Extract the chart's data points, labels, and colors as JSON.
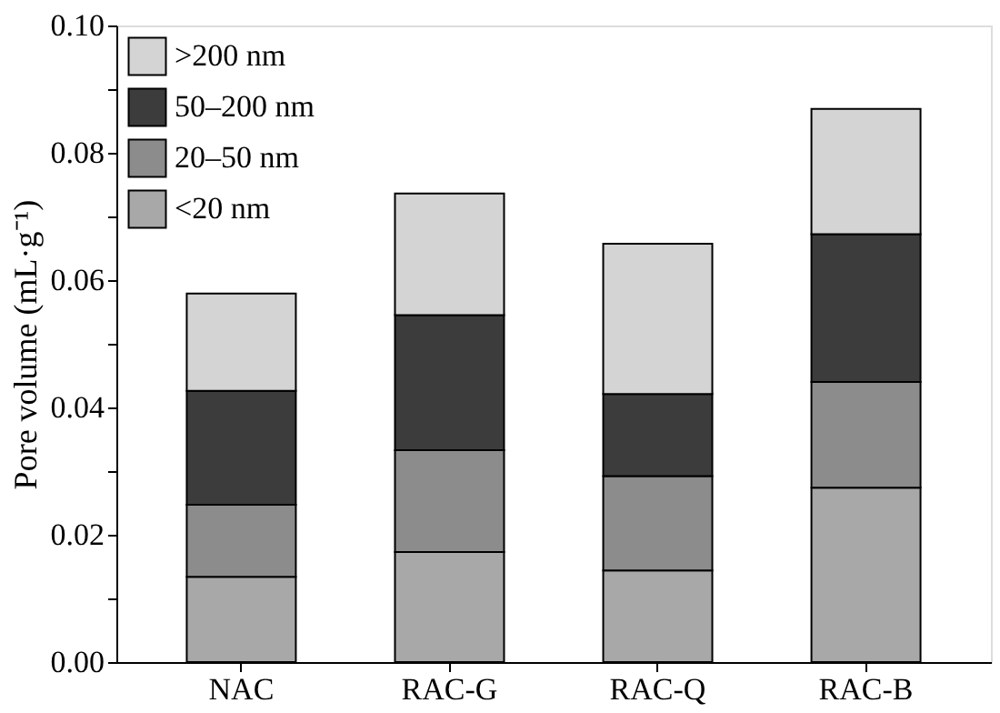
{
  "chart_data": {
    "type": "bar",
    "stacked": true,
    "ylabel": "Pore volume (mL·g⁻¹)",
    "categories": [
      "NAC",
      "RAC-G",
      "RAC-Q",
      "RAC-B"
    ],
    "series": [
      {
        "name": "<20 nm",
        "color": "#a8a8a8",
        "values": [
          0.0134,
          0.0173,
          0.0144,
          0.0274
        ]
      },
      {
        "name": "20–50 nm",
        "color": "#8c8c8c",
        "values": [
          0.0113,
          0.016,
          0.0148,
          0.0166
        ]
      },
      {
        "name": "50–200 nm",
        "color": "#3c3c3c",
        "values": [
          0.0179,
          0.0212,
          0.0129,
          0.0232
        ]
      },
      {
        "name": ">200 nm",
        "color": "#d4d4d4",
        "values": [
          0.0153,
          0.0191,
          0.0236,
          0.0197
        ]
      }
    ],
    "ylim": [
      0,
      0.1
    ],
    "yticks": [
      {
        "value": 0,
        "label": "0.00"
      },
      {
        "value": 0.01,
        "label": null
      },
      {
        "value": 0.02,
        "label": "0.02"
      },
      {
        "value": 0.03,
        "label": null
      },
      {
        "value": 0.04,
        "label": "0.04"
      },
      {
        "value": 0.05,
        "label": null
      },
      {
        "value": 0.06,
        "label": "0.06"
      },
      {
        "value": 0.07,
        "label": null
      },
      {
        "value": 0.08,
        "label": "0.08"
      },
      {
        "value": 0.09,
        "label": null
      },
      {
        "value": 0.1,
        "label": "0.10"
      }
    ],
    "legend": "top left",
    "grid": false
  }
}
